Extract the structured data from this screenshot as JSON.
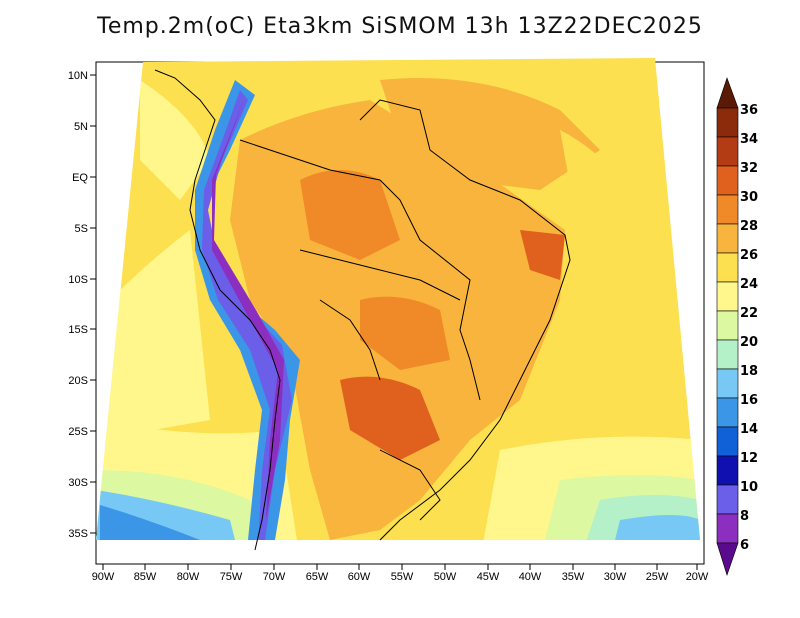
{
  "title": "Temp.2m(oC) Eta3km SiSMOM 13h 13Z22DEC2025",
  "lat_labels": [
    "10N",
    "5N",
    "EQ",
    "5S",
    "10S",
    "15S",
    "20S",
    "25S",
    "30S",
    "35S"
  ],
  "lon_labels": [
    "90W",
    "85W",
    "80W",
    "75W",
    "70W",
    "65W",
    "60W",
    "55W",
    "50W",
    "45W",
    "40W",
    "35W",
    "30W",
    "25W",
    "20W"
  ],
  "colorbar": {
    "labels": [
      "6",
      "8",
      "10",
      "12",
      "14",
      "16",
      "18",
      "20",
      "22",
      "24",
      "26",
      "28",
      "30",
      "32",
      "34",
      "36"
    ],
    "colors": [
      "#5a0a8c",
      "#8c2fc0",
      "#6b5ee8",
      "#1010b0",
      "#1060d8",
      "#3c96e8",
      "#78c8f5",
      "#b4f0c8",
      "#dcf8a0",
      "#fff78c",
      "#fde050",
      "#f8b43c",
      "#f08a28",
      "#e0601e",
      "#b43c14",
      "#8c2a0c",
      "#5a1a06"
    ]
  }
}
